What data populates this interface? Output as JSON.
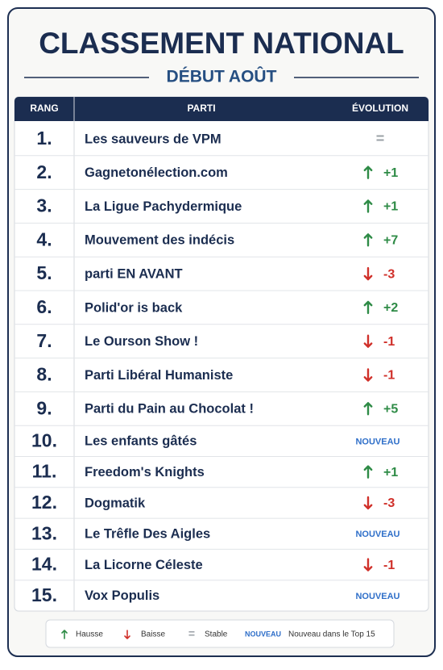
{
  "header": {
    "title": "CLASSEMENT NATIONAL",
    "subtitle": "DÉBUT AOÛT"
  },
  "table": {
    "columns": [
      "RANG",
      "PARTI",
      "ÉVOLUTION"
    ],
    "rows": [
      [
        "1.",
        "Les sauveurs de VPM",
        "="
      ],
      [
        "2.",
        "Gagnetonélection.com",
        "+1"
      ],
      [
        "3.",
        "La Ligue Pachydermique",
        "+1"
      ],
      [
        "4.",
        "Mouvement des indécis",
        "+7"
      ],
      [
        "5.",
        "parti EN AVANT",
        "-3"
      ],
      [
        "6.",
        "Polid'or is back",
        "+2"
      ],
      [
        "7.",
        "Le Ourson Show !",
        "-1"
      ],
      [
        "8.",
        "Parti Libéral Humaniste",
        "-1"
      ],
      [
        "9.",
        "Parti du Pain au Chocolat !",
        "+5"
      ],
      [
        "10.",
        "Les enfants gâtés",
        "NOUVEAU"
      ],
      [
        "11.",
        "Freedom's Knights",
        "+1"
      ],
      [
        "12.",
        "Dogmatik",
        "-3"
      ],
      [
        "13.",
        "Le Trêfle Des Aigles",
        "NOUVEAU"
      ],
      [
        "14.",
        "La Licorne Céleste",
        "-1"
      ],
      [
        "15.",
        "Vox Populis",
        "NOUVEAU"
      ]
    ]
  },
  "legend": [
    {
      "label": "Hausse"
    },
    {
      "label": "Baisse"
    },
    {
      "symbol": "=",
      "label": "Stable"
    },
    {
      "symbol": "NOUVEAU",
      "label": "Nouveau dans le Top 15"
    }
  ]
}
